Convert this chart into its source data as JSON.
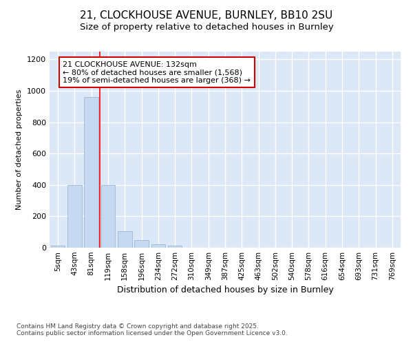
{
  "title_line1": "21, CLOCKHOUSE AVENUE, BURNLEY, BB10 2SU",
  "title_line2": "Size of property relative to detached houses in Burnley",
  "xlabel": "Distribution of detached houses by size in Burnley",
  "ylabel": "Number of detached properties",
  "bar_labels": [
    "5sqm",
    "43sqm",
    "81sqm",
    "119sqm",
    "158sqm",
    "196sqm",
    "234sqm",
    "272sqm",
    "310sqm",
    "349sqm",
    "387sqm",
    "425sqm",
    "463sqm",
    "502sqm",
    "540sqm",
    "578sqm",
    "616sqm",
    "654sqm",
    "693sqm",
    "731sqm",
    "769sqm"
  ],
  "bar_values": [
    15,
    400,
    960,
    400,
    105,
    50,
    20,
    15,
    0,
    0,
    0,
    0,
    0,
    0,
    0,
    0,
    0,
    0,
    0,
    0,
    0
  ],
  "bar_color": "#c6d9f0",
  "bar_edge_color": "#9ab8d8",
  "plot_bg_color": "#dce8f5",
  "fig_bg_color": "#ffffff",
  "grid_color": "#ffffff",
  "red_line_x": 2.5,
  "annotation_text": "21 CLOCKHOUSE AVENUE: 132sqm\n← 80% of detached houses are smaller (1,568)\n19% of semi-detached houses are larger (368) →",
  "annotation_box_facecolor": "#ffffff",
  "annotation_box_edgecolor": "#cc0000",
  "ylim": [
    0,
    1250
  ],
  "yticks": [
    0,
    200,
    400,
    600,
    800,
    1000,
    1200
  ],
  "footer_text": "Contains HM Land Registry data © Crown copyright and database right 2025.\nContains public sector information licensed under the Open Government Licence v3.0."
}
